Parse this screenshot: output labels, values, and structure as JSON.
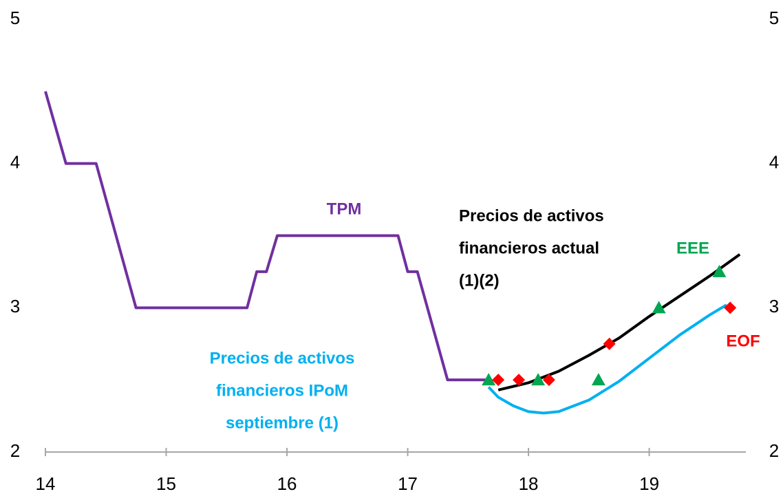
{
  "chart_data": {
    "type": "line",
    "xlim": [
      14,
      19.8
    ],
    "xticks": [
      14,
      15,
      16,
      17,
      18,
      19
    ],
    "ylim": [
      2,
      5
    ],
    "yticks": [
      2,
      3,
      4,
      5
    ],
    "y2lim": [
      2,
      5
    ],
    "y2ticks": [
      2,
      3,
      4,
      5
    ],
    "series": [
      {
        "name": "TPM",
        "type": "line",
        "color": "#7030a0",
        "x": [
          14,
          14.17,
          14.42,
          14.75,
          15.67,
          15.75,
          15.83,
          15.92,
          16.92,
          17.0,
          17.08,
          17.33,
          17.67
        ],
        "values": [
          4.5,
          4.0,
          4.0,
          3.0,
          3.0,
          3.25,
          3.25,
          3.5,
          3.5,
          3.25,
          3.25,
          2.5,
          2.5
        ]
      },
      {
        "name": [
          "Precios de activos",
          "financieros actual",
          "(1)(2)"
        ],
        "type": "line",
        "color": "#000000",
        "x": [
          17.75,
          18.0,
          18.25,
          18.5,
          18.75,
          19.0,
          19.25,
          19.5,
          19.75
        ],
        "values": [
          2.43,
          2.48,
          2.56,
          2.67,
          2.79,
          2.94,
          3.08,
          3.22,
          3.37
        ]
      },
      {
        "name": [
          "Precios de activos",
          "financieros IPoM",
          "septiembre (1)"
        ],
        "type": "line",
        "color": "#00b0f0",
        "x": [
          17.67,
          17.75,
          17.875,
          18.0,
          18.125,
          18.25,
          18.5,
          18.75,
          19.0,
          19.25,
          19.5,
          19.64
        ],
        "values": [
          2.45,
          2.38,
          2.32,
          2.28,
          2.27,
          2.28,
          2.36,
          2.49,
          2.65,
          2.81,
          2.95,
          3.02
        ]
      },
      {
        "name": "EEE",
        "type": "scatter",
        "marker": "triangle",
        "color": "#00a651",
        "x": [
          17.67,
          18.08,
          18.58,
          19.08,
          19.58
        ],
        "values": [
          2.5,
          2.5,
          2.5,
          3.0,
          3.25
        ]
      },
      {
        "name": "EOF",
        "type": "scatter",
        "marker": "diamond",
        "color": "#ff0000",
        "x": [
          17.75,
          17.92,
          18.17,
          18.67,
          19.67
        ],
        "values": [
          2.5,
          2.5,
          2.5,
          2.75,
          3.0
        ]
      }
    ]
  }
}
